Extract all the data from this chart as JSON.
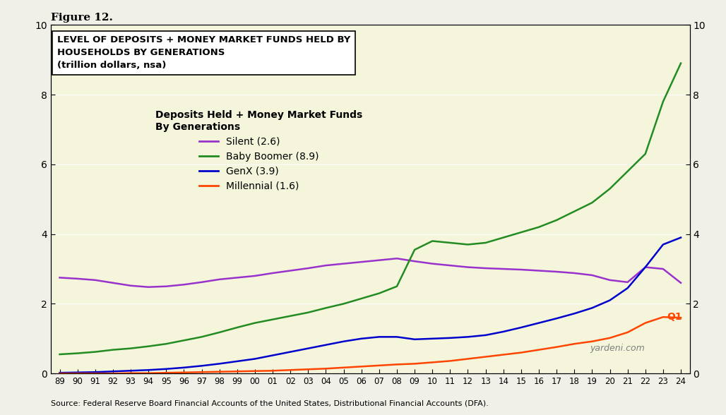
{
  "title_fig": "Figure 12.",
  "title_box": "LEVEL OF DEPOSITS + MONEY MARKET FUNDS HELD BY\nHOUSEHOLDS BY GENERATIONS\n(trillion dollars, nsa)",
  "legend_title": "Deposits Held + Money Market Funds\nBy Generations",
  "legend_entries": [
    "Silent (2.6)",
    "Baby Boomer (8.9)",
    "GenX (3.9)",
    "Millennial (1.6)"
  ],
  "source_text": "Source: Federal Reserve Board Financial Accounts of the United States, Distributional Financial Accounts (DFA).",
  "watermark": "yardeni.com",
  "q1_label": "Q1",
  "background_color": "#f5f5dc",
  "plot_bg_color": "#f5f5dc",
  "ylim": [
    0,
    10
  ],
  "yticks": [
    0,
    2,
    4,
    6,
    8,
    10
  ],
  "x_start_year": 1989,
  "x_end_year": 2024,
  "xtick_labels": [
    "89",
    "90",
    "91",
    "92",
    "93",
    "94",
    "95",
    "96",
    "97",
    "98",
    "99",
    "00",
    "01",
    "02",
    "03",
    "04",
    "05",
    "06",
    "07",
    "08",
    "09",
    "10",
    "11",
    "12",
    "13",
    "14",
    "15",
    "16",
    "17",
    "18",
    "19",
    "20",
    "21",
    "22",
    "23",
    "24"
  ],
  "colors": {
    "silent": "#9932CC",
    "baby_boomer": "#228B22",
    "genx": "#0000CD",
    "millennial": "#FF4500"
  },
  "silent": [
    2.75,
    2.72,
    2.68,
    2.6,
    2.52,
    2.48,
    2.5,
    2.55,
    2.62,
    2.7,
    2.75,
    2.8,
    2.88,
    2.95,
    3.02,
    3.1,
    3.15,
    3.2,
    3.25,
    3.3,
    3.22,
    3.15,
    3.1,
    3.05,
    3.02,
    3.0,
    2.98,
    2.95,
    2.92,
    2.88,
    2.82,
    2.68,
    2.62,
    3.05,
    3.0,
    2.6
  ],
  "baby_boomer": [
    0.55,
    0.58,
    0.62,
    0.68,
    0.72,
    0.78,
    0.85,
    0.95,
    1.05,
    1.18,
    1.32,
    1.45,
    1.55,
    1.65,
    1.75,
    1.88,
    2.0,
    2.15,
    2.3,
    2.5,
    3.55,
    3.8,
    3.75,
    3.7,
    3.75,
    3.9,
    4.05,
    4.2,
    4.4,
    4.65,
    4.9,
    5.3,
    5.8,
    6.3,
    7.8,
    8.9
  ],
  "genx": [
    0.02,
    0.03,
    0.04,
    0.06,
    0.08,
    0.1,
    0.13,
    0.17,
    0.22,
    0.28,
    0.35,
    0.42,
    0.52,
    0.62,
    0.72,
    0.82,
    0.92,
    1.0,
    1.05,
    1.05,
    0.98,
    1.0,
    1.02,
    1.05,
    1.1,
    1.2,
    1.32,
    1.45,
    1.58,
    1.72,
    1.88,
    2.1,
    2.45,
    3.05,
    3.7,
    3.9
  ],
  "millennial": [
    0.0,
    0.0,
    0.0,
    0.0,
    0.01,
    0.01,
    0.02,
    0.03,
    0.04,
    0.05,
    0.06,
    0.07,
    0.08,
    0.1,
    0.12,
    0.14,
    0.17,
    0.2,
    0.23,
    0.26,
    0.28,
    0.32,
    0.36,
    0.42,
    0.48,
    0.54,
    0.6,
    0.68,
    0.76,
    0.85,
    0.92,
    1.02,
    1.18,
    1.45,
    1.62,
    1.6
  ]
}
